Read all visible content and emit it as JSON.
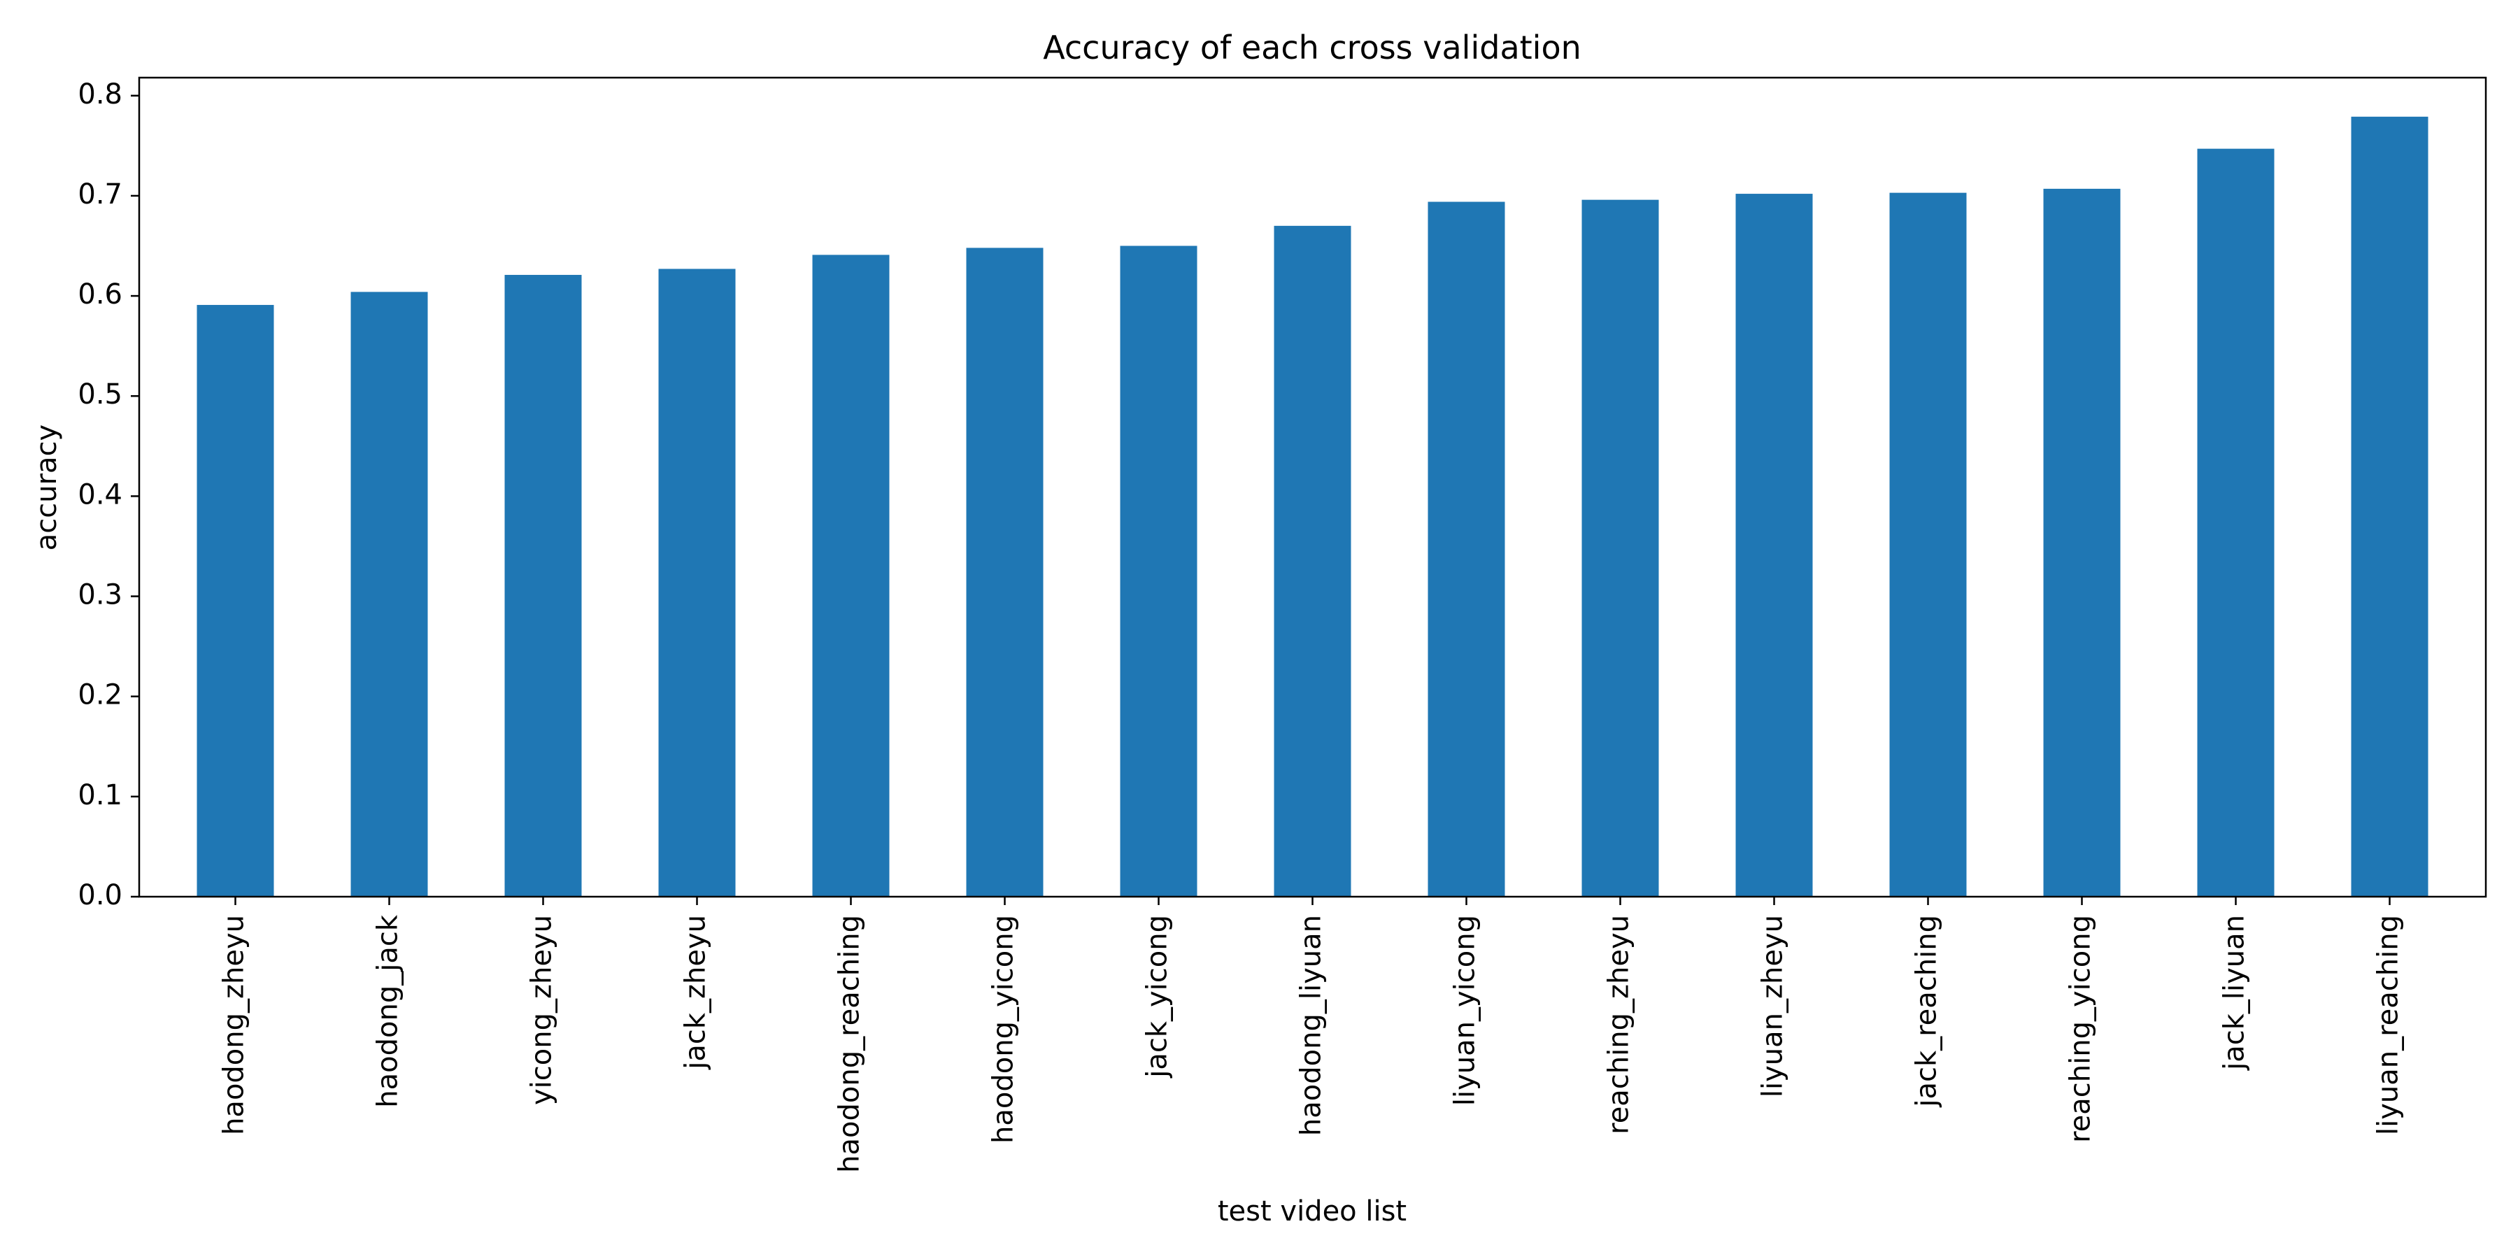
{
  "chart_data": {
    "type": "bar",
    "title": "Accuracy of each cross validation",
    "xlabel": "test video list",
    "ylabel": "accuracy",
    "categories": [
      "haodong_zheyu",
      "haodong_jack",
      "yicong_zheyu",
      "jack_zheyu",
      "haodong_reaching",
      "haodong_yicong",
      "jack_yicong",
      "haodong_liyuan",
      "liyuan_yicong",
      "reaching_zheyu",
      "liyuan_zheyu",
      "jack_reaching",
      "reaching_yicong",
      "jack_liyuan",
      "liyuan_reaching"
    ],
    "values": [
      0.591,
      0.604,
      0.621,
      0.627,
      0.641,
      0.648,
      0.65,
      0.67,
      0.694,
      0.696,
      0.702,
      0.703,
      0.707,
      0.747,
      0.779
    ],
    "ylim": [
      0,
      0.818
    ],
    "yticks": [
      "0.0",
      "0.1",
      "0.2",
      "0.3",
      "0.4",
      "0.5",
      "0.6",
      "0.7",
      "0.8"
    ],
    "grid": false,
    "legend": "none",
    "bar_color": "#1f77b4"
  }
}
